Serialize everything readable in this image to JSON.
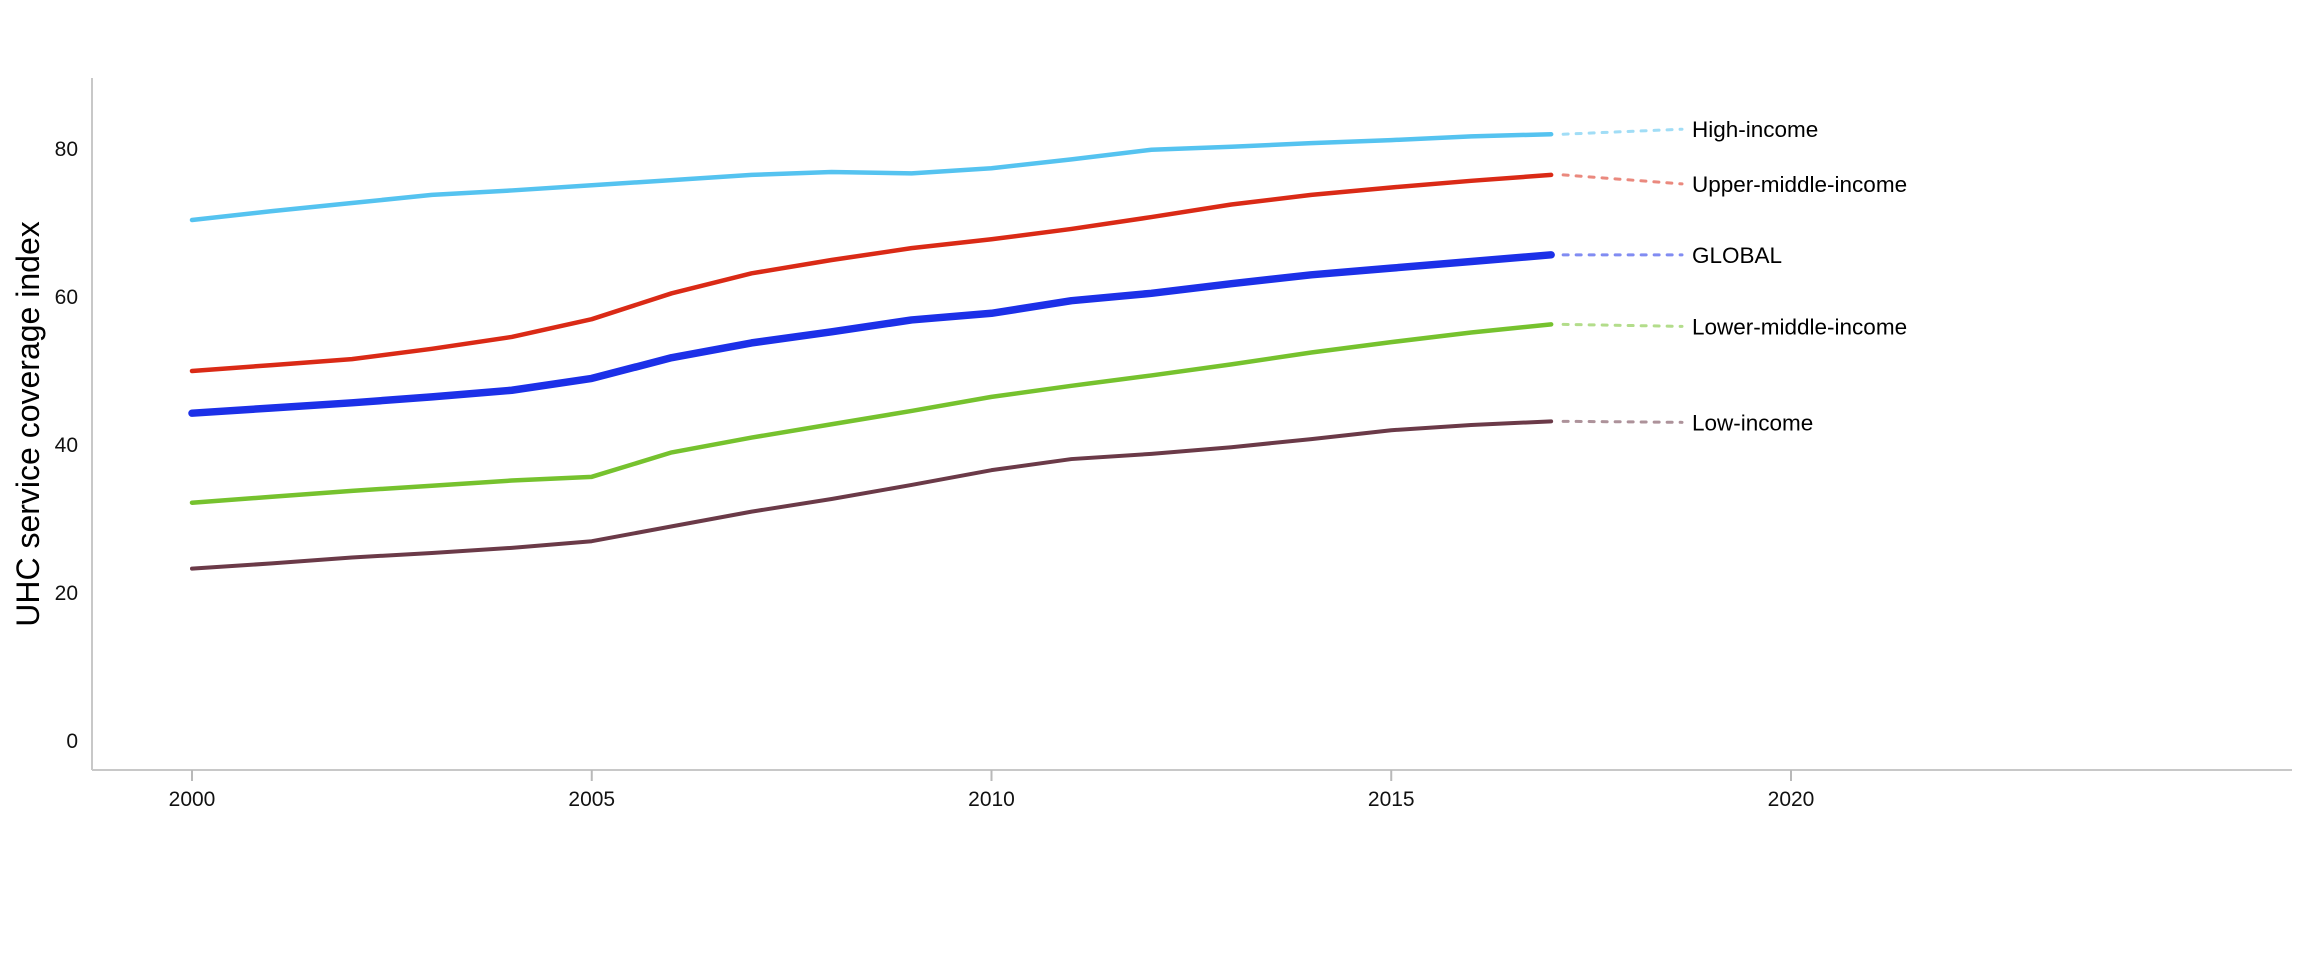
{
  "figure": {
    "background_color": "#ffffff",
    "axis_line_color": "#c8c8c8",
    "tick_mark_color": "#b9b9b9",
    "tick_label_color": "#111111",
    "label_text_color": "#000000"
  },
  "chart_data": {
    "type": "line",
    "title": "",
    "xlabel": "",
    "ylabel": "UHC service coverage index",
    "x_tick_labels": [
      "2000",
      "2005",
      "2010",
      "2015",
      "2020"
    ],
    "x_ticks": [
      2000,
      2005,
      2010,
      2015,
      2020
    ],
    "y_tick_labels": [
      "0",
      "20",
      "40",
      "60",
      "80"
    ],
    "y_ticks": [
      0,
      20,
      40,
      60,
      80
    ],
    "xlim": [
      1998.75,
      2026.3
    ],
    "ylim": [
      0,
      89.5
    ],
    "grid": false,
    "legend_position": "right-end-labels",
    "x": [
      2000,
      2001,
      2002,
      2003,
      2004,
      2005,
      2006,
      2007,
      2008,
      2009,
      2010,
      2011,
      2012,
      2013,
      2014,
      2015,
      2016,
      2017
    ],
    "series": [
      {
        "name": "High-income",
        "color": "#55C3F0",
        "line_width": 4.5,
        "values": [
          70.4,
          71.6,
          72.7,
          73.8,
          74.4,
          75.1,
          75.8,
          76.5,
          76.9,
          76.7,
          77.4,
          78.6,
          79.9,
          80.3,
          80.8,
          81.2,
          81.7,
          82.0
        ]
      },
      {
        "name": "Upper-middle-income",
        "color": "#DA2A16",
        "line_width": 4.5,
        "values": [
          50.0,
          50.8,
          51.6,
          53.0,
          54.6,
          57.0,
          60.5,
          63.2,
          65.0,
          66.6,
          67.8,
          69.2,
          70.8,
          72.5,
          73.8,
          74.8,
          75.7,
          76.5
        ]
      },
      {
        "name": "GLOBAL",
        "color": "#1C30E8",
        "line_width": 7.5,
        "values": [
          44.3,
          45.0,
          45.7,
          46.5,
          47.4,
          49.0,
          51.8,
          53.8,
          55.3,
          56.9,
          57.8,
          59.5,
          60.5,
          61.8,
          63.0,
          63.9,
          64.8,
          65.7
        ]
      },
      {
        "name": "Lower-middle-income",
        "color": "#76C22E",
        "line_width": 4.5,
        "values": [
          32.2,
          33.0,
          33.8,
          34.5,
          35.2,
          35.7,
          39.0,
          41.0,
          42.8,
          44.6,
          46.5,
          48.0,
          49.4,
          50.9,
          52.5,
          53.9,
          55.2,
          56.3
        ]
      },
      {
        "name": "Low-income",
        "color": "#6B3A48",
        "line_width": 4.0,
        "values": [
          23.3,
          24.0,
          24.8,
          25.4,
          26.1,
          27.0,
          29.0,
          31.0,
          32.7,
          34.6,
          36.6,
          38.1,
          38.8,
          39.7,
          40.8,
          42.0,
          42.7,
          43.2
        ]
      }
    ]
  }
}
